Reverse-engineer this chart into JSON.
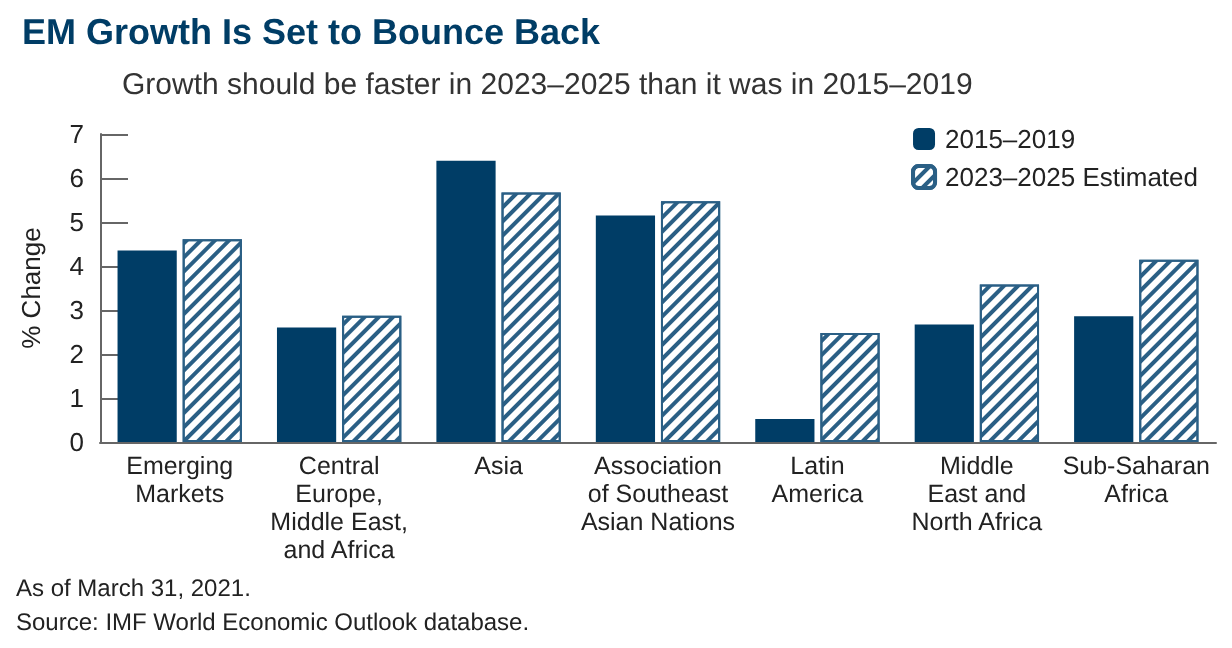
{
  "chart_data": {
    "type": "bar",
    "title": "EM Growth Is Set to Bounce Back",
    "subtitle": "Growth should be faster in 2023–2025 than it was in 2015–2019",
    "ylabel": "% Change",
    "categories": [
      "Emerging\nMarkets",
      "Central\nEurope,\nMiddle East,\nand Africa",
      "Asia",
      "Association\nof Southeast\nAsian Nations",
      "Latin\nAmerica",
      "Middle\nEast and\nNorth Africa",
      "Sub-Saharan\nAfrica"
    ],
    "series": [
      {
        "name": "2015–2019",
        "color": "#003d66",
        "values": [
          4.35,
          2.6,
          6.39,
          5.15,
          0.52,
          2.67,
          2.86
        ]
      },
      {
        "name": "2023–2025 Estimated",
        "color": "#2a5f85",
        "values": [
          4.61,
          2.87,
          5.67,
          5.47,
          2.48,
          3.58,
          4.14
        ]
      }
    ],
    "ylim": [
      0,
      7
    ],
    "yticks": [
      0,
      1,
      2,
      3,
      4,
      5,
      6,
      7
    ],
    "grid": false,
    "legend": "top right",
    "annotations": [
      "As of March 31, 2021.",
      "Source: IMF World Economic Outlook database."
    ]
  }
}
